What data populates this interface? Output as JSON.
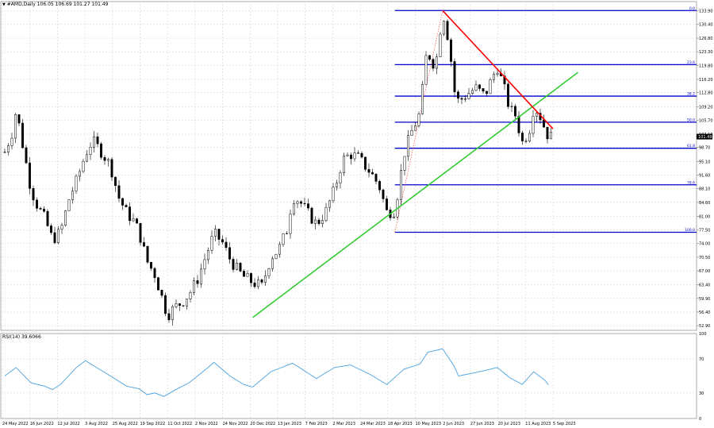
{
  "header": {
    "icon": "down-triangle-icon",
    "symbol_text": "#AMD,Daily",
    "ohlc_text": "106.05 106.69 101.27 101.49"
  },
  "rsi_panel": {
    "label": "RSI(14) 39.6066"
  },
  "chart_data": [
    {
      "type": "candlestick",
      "title": "#AMD,Daily",
      "ohlc": {
        "open": 106.05,
        "high": 106.69,
        "low": 101.27,
        "close": 101.49
      },
      "current_price_label": "101.49",
      "y_ticks": [
        "133.90",
        "130.40",
        "126.80",
        "123.30",
        "119.80",
        "116.20",
        "112.80",
        "109.20",
        "105.70",
        "102.10",
        "98.70",
        "95.10",
        "91.60",
        "88.10",
        "84.60",
        "81.00",
        "77.50",
        "74.00",
        "70.50",
        "67.00",
        "63.40",
        "59.90",
        "56.40",
        "52.90"
      ],
      "x_ticks": [
        "24 May 2022",
        "16 Jun 2022",
        "12 Jul 2022",
        "3 Aug 2022",
        "25 Aug 2022",
        "19 Sep 2022",
        "11 Oct 2022",
        "2 Nov 2022",
        "24 Nov 2022",
        "20 Dec 2022",
        "13 Jan 2023",
        "7 Feb 2023",
        "2 Mar 2023",
        "24 Mar 2023",
        "18 Apr 2023",
        "10 May 2023",
        "2 Jun 2023",
        "27 Jun 2023",
        "20 Jul 2023",
        "11 Aug 2023",
        "5 Sep 2023"
      ],
      "ylim": [
        51.7,
        136.2
      ],
      "grid": true,
      "price_path": [
        {
          "x": "2022-05-24",
          "y": 97.5
        },
        {
          "x": "2022-05-31",
          "y": 103.0
        },
        {
          "x": "2022-06-03",
          "y": 108.5
        },
        {
          "x": "2022-06-09",
          "y": 99.0
        },
        {
          "x": "2022-06-16",
          "y": 88.0
        },
        {
          "x": "2022-06-22",
          "y": 83.5
        },
        {
          "x": "2022-06-28",
          "y": 80.5
        },
        {
          "x": "2022-07-05",
          "y": 75.0
        },
        {
          "x": "2022-07-12",
          "y": 77.0
        },
        {
          "x": "2022-07-20",
          "y": 86.0
        },
        {
          "x": "2022-07-26",
          "y": 90.0
        },
        {
          "x": "2022-08-03",
          "y": 97.0
        },
        {
          "x": "2022-08-09",
          "y": 100.5
        },
        {
          "x": "2022-08-16",
          "y": 98.0
        },
        {
          "x": "2022-08-25",
          "y": 94.0
        },
        {
          "x": "2022-09-01",
          "y": 86.0
        },
        {
          "x": "2022-09-08",
          "y": 82.0
        },
        {
          "x": "2022-09-15",
          "y": 79.5
        },
        {
          "x": "2022-09-19",
          "y": 77.0
        },
        {
          "x": "2022-09-26",
          "y": 69.5
        },
        {
          "x": "2022-10-03",
          "y": 66.0
        },
        {
          "x": "2022-10-11",
          "y": 58.5
        },
        {
          "x": "2022-10-14",
          "y": 55.5
        },
        {
          "x": "2022-10-20",
          "y": 57.5
        },
        {
          "x": "2022-10-27",
          "y": 59.0
        },
        {
          "x": "2022-11-02",
          "y": 61.0
        },
        {
          "x": "2022-11-09",
          "y": 64.5
        },
        {
          "x": "2022-11-17",
          "y": 71.0
        },
        {
          "x": "2022-11-24",
          "y": 76.5
        },
        {
          "x": "2022-12-01",
          "y": 74.5
        },
        {
          "x": "2022-12-08",
          "y": 70.0
        },
        {
          "x": "2022-12-15",
          "y": 67.0
        },
        {
          "x": "2022-12-20",
          "y": 65.5
        },
        {
          "x": "2022-12-28",
          "y": 64.0
        },
        {
          "x": "2023-01-05",
          "y": 63.0
        },
        {
          "x": "2023-01-13",
          "y": 70.5
        },
        {
          "x": "2023-01-20",
          "y": 72.5
        },
        {
          "x": "2023-01-27",
          "y": 77.5
        },
        {
          "x": "2023-02-01",
          "y": 86.0
        },
        {
          "x": "2023-02-07",
          "y": 85.0
        },
        {
          "x": "2023-02-14",
          "y": 82.0
        },
        {
          "x": "2023-02-22",
          "y": 79.0
        },
        {
          "x": "2023-03-02",
          "y": 82.0
        },
        {
          "x": "2023-03-10",
          "y": 88.0
        },
        {
          "x": "2023-03-17",
          "y": 95.5
        },
        {
          "x": "2023-03-24",
          "y": 97.0
        },
        {
          "x": "2023-03-31",
          "y": 96.0
        },
        {
          "x": "2023-04-10",
          "y": 92.5
        },
        {
          "x": "2023-04-18",
          "y": 89.0
        },
        {
          "x": "2023-04-25",
          "y": 82.0
        },
        {
          "x": "2023-05-02",
          "y": 82.5
        },
        {
          "x": "2023-05-10",
          "y": 97.0
        },
        {
          "x": "2023-05-17",
          "y": 103.0
        },
        {
          "x": "2023-05-24",
          "y": 107.5
        },
        {
          "x": "2023-05-31",
          "y": 126.0
        },
        {
          "x": "2023-06-02",
          "y": 121.0
        },
        {
          "x": "2023-06-07",
          "y": 120.0
        },
        {
          "x": "2023-06-13",
          "y": 133.9
        },
        {
          "x": "2023-06-19",
          "y": 125.0
        },
        {
          "x": "2023-06-23",
          "y": 113.5
        },
        {
          "x": "2023-06-27",
          "y": 110.5
        },
        {
          "x": "2023-07-05",
          "y": 112.5
        },
        {
          "x": "2023-07-12",
          "y": 114.0
        },
        {
          "x": "2023-07-20",
          "y": 112.0
        },
        {
          "x": "2023-07-25",
          "y": 115.5
        },
        {
          "x": "2023-07-31",
          "y": 119.5
        },
        {
          "x": "2023-08-07",
          "y": 113.0
        },
        {
          "x": "2023-08-11",
          "y": 108.5
        },
        {
          "x": "2023-08-16",
          "y": 107.0
        },
        {
          "x": "2023-08-22",
          "y": 100.0
        },
        {
          "x": "2023-08-28",
          "y": 103.0
        },
        {
          "x": "2023-09-01",
          "y": 109.0
        },
        {
          "x": "2023-09-05",
          "y": 108.0
        },
        {
          "x": "2023-09-11",
          "y": 103.5
        },
        {
          "x": "2023-09-14",
          "y": 101.49
        }
      ],
      "fibonacci": {
        "levels": [
          {
            "label": "0.0",
            "value": 133.9
          },
          {
            "label": "23.6",
            "value": 120.0
          },
          {
            "label": "38.2",
            "value": 111.9
          },
          {
            "label": "50.0",
            "value": 105.2
          },
          {
            "label": "61.8",
            "value": 98.5
          },
          {
            "label": "78.6",
            "value": 89.1
          },
          {
            "label": "100.0",
            "value": 76.9
          }
        ],
        "color": "#0000cc"
      },
      "trendlines": [
        {
          "name": "support",
          "color": "#33cc33",
          "from": {
            "x": "2022-12-28",
            "y": 55.0
          },
          "to": {
            "x": "2023-10-10",
            "y": 118.0
          }
        },
        {
          "name": "resistance",
          "color": "#ff0000",
          "from": {
            "x": "2023-06-13",
            "y": 133.9
          },
          "to": {
            "x": "2023-09-18",
            "y": 103.5
          }
        }
      ],
      "colors": {
        "background": "#ffffff",
        "candles": "#000000",
        "grid": "#c8c8c8"
      }
    },
    {
      "type": "line",
      "title": "RSI(14) 39.6066",
      "y_ticks": [
        "100",
        "70",
        "30",
        "0"
      ],
      "ylim": [
        0,
        100
      ],
      "color": "#4aa3df",
      "values": [
        {
          "x": "2022-05-24",
          "y": 50
        },
        {
          "x": "2022-06-03",
          "y": 60
        },
        {
          "x": "2022-06-16",
          "y": 42
        },
        {
          "x": "2022-06-28",
          "y": 38
        },
        {
          "x": "2022-07-05",
          "y": 34
        },
        {
          "x": "2022-07-12",
          "y": 40
        },
        {
          "x": "2022-07-26",
          "y": 60
        },
        {
          "x": "2022-08-03",
          "y": 68
        },
        {
          "x": "2022-08-09",
          "y": 63
        },
        {
          "x": "2022-08-25",
          "y": 50
        },
        {
          "x": "2022-09-08",
          "y": 38
        },
        {
          "x": "2022-09-19",
          "y": 35
        },
        {
          "x": "2022-09-26",
          "y": 28
        },
        {
          "x": "2022-10-03",
          "y": 30
        },
        {
          "x": "2022-10-11",
          "y": 26
        },
        {
          "x": "2022-10-20",
          "y": 33
        },
        {
          "x": "2022-11-02",
          "y": 42
        },
        {
          "x": "2022-11-17",
          "y": 58
        },
        {
          "x": "2022-11-24",
          "y": 66
        },
        {
          "x": "2022-12-08",
          "y": 50
        },
        {
          "x": "2022-12-20",
          "y": 40
        },
        {
          "x": "2022-12-28",
          "y": 37
        },
        {
          "x": "2023-01-13",
          "y": 55
        },
        {
          "x": "2023-02-01",
          "y": 65
        },
        {
          "x": "2023-02-14",
          "y": 54
        },
        {
          "x": "2023-02-22",
          "y": 47
        },
        {
          "x": "2023-03-10",
          "y": 60
        },
        {
          "x": "2023-03-24",
          "y": 63
        },
        {
          "x": "2023-04-10",
          "y": 52
        },
        {
          "x": "2023-04-25",
          "y": 40
        },
        {
          "x": "2023-05-10",
          "y": 58
        },
        {
          "x": "2023-05-24",
          "y": 64
        },
        {
          "x": "2023-05-31",
          "y": 78
        },
        {
          "x": "2023-06-13",
          "y": 82
        },
        {
          "x": "2023-06-23",
          "y": 62
        },
        {
          "x": "2023-06-27",
          "y": 50
        },
        {
          "x": "2023-07-12",
          "y": 54
        },
        {
          "x": "2023-07-25",
          "y": 58
        },
        {
          "x": "2023-07-31",
          "y": 60
        },
        {
          "x": "2023-08-11",
          "y": 48
        },
        {
          "x": "2023-08-22",
          "y": 40
        },
        {
          "x": "2023-09-01",
          "y": 55
        },
        {
          "x": "2023-09-11",
          "y": 45
        },
        {
          "x": "2023-09-14",
          "y": 39.6
        }
      ]
    }
  ]
}
